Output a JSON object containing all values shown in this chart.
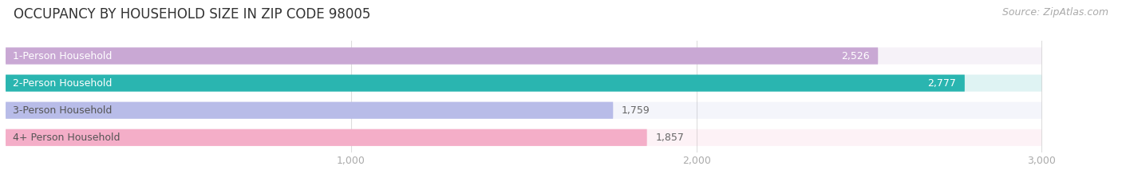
{
  "title": "OCCUPANCY BY HOUSEHOLD SIZE IN ZIP CODE 98005",
  "source": "Source: ZipAtlas.com",
  "categories": [
    "1-Person Household",
    "2-Person Household",
    "3-Person Household",
    "4+ Person Household"
  ],
  "values": [
    2526,
    2777,
    1759,
    1857
  ],
  "bar_colors": [
    "#c9a8d4",
    "#2ab5b0",
    "#b8bce8",
    "#f4aec8"
  ],
  "value_label_inside": [
    true,
    true,
    false,
    false
  ],
  "value_label_colors_inside": [
    "white",
    "white",
    "#666666",
    "#666666"
  ],
  "xlim_min": 0,
  "xlim_max": 3200,
  "data_max": 3000,
  "xticks": [
    1000,
    2000,
    3000
  ],
  "xtick_labels": [
    "1,000",
    "2,000",
    "3,000"
  ],
  "title_fontsize": 12,
  "source_fontsize": 9,
  "label_fontsize": 9,
  "value_fontsize": 9,
  "tick_fontsize": 9,
  "background_color": "#ffffff",
  "bar_height": 0.62,
  "bg_bar_alpha": 0.15,
  "bar_gap": 0.18,
  "label_color_dark": "#555555",
  "label_color_light": "white",
  "grid_color": "#dddddd",
  "tick_color": "#aaaaaa"
}
